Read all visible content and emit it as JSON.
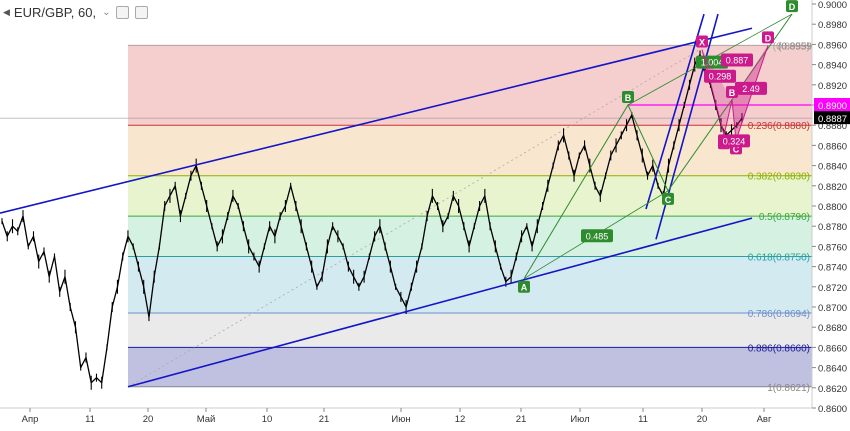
{
  "header": {
    "symbol": "EUR/GBP, 60,"
  },
  "icons": {
    "collapse": "collapse-triangle-icon",
    "dropdown": "chevron-down-icon",
    "settings": "settings-icon",
    "close": "close-icon"
  },
  "chart_data": {
    "type": "line",
    "y_axis": {
      "position": "right",
      "range": [
        0.86,
        0.9
      ],
      "ticks": [
        "0.8600",
        "0.8620",
        "0.8640",
        "0.8660",
        "0.8680",
        "0.8700",
        "0.8720",
        "0.8740",
        "0.8760",
        "0.8780",
        "0.8800",
        "0.8820",
        "0.8840",
        "0.8860",
        "0.8880",
        "0.8900",
        "0.8920",
        "0.8940",
        "0.8960",
        "0.8980",
        "0.9000"
      ],
      "price_labels": [
        {
          "value": 0.89,
          "text": "0.8900",
          "color": "#ff00ff"
        },
        {
          "value": 0.8887,
          "text": "0.8887",
          "color": "#000000"
        }
      ]
    },
    "x_axis": {
      "ticks": [
        "Апр",
        "11",
        "20",
        "Май",
        "10",
        "21",
        "Июн",
        "12",
        "21",
        "Июл",
        "11",
        "20",
        "Авг"
      ]
    },
    "price_series": [
      [
        0.8785,
        0.877,
        0.878,
        0.8775,
        0.879,
        0.876,
        0.877,
        0.8745,
        0.8755,
        0.873,
        0.875,
        0.8715,
        0.873,
        0.87,
        0.868,
        0.864,
        0.865,
        0.8625,
        0.863,
        0.8625,
        0.866,
        0.87,
        0.872,
        0.875,
        0.877,
        0.876,
        0.874,
        0.872,
        0.869,
        0.873,
        0.876,
        0.88,
        0.881,
        0.882,
        0.879,
        0.881,
        0.883,
        0.884,
        0.882,
        0.88,
        0.878,
        0.876,
        0.877,
        0.879,
        0.881,
        0.88,
        0.878,
        0.876,
        0.875,
        0.874,
        0.876,
        0.878,
        0.877,
        0.879,
        0.88,
        0.882,
        0.88,
        0.878,
        0.876,
        0.874,
        0.872,
        0.873,
        0.876,
        0.878,
        0.877,
        0.876,
        0.874,
        0.873,
        0.872,
        0.873,
        0.875,
        0.877,
        0.878,
        0.876,
        0.874,
        0.872,
        0.871,
        0.87,
        0.872,
        0.874,
        0.876,
        0.879,
        0.881,
        0.88,
        0.878,
        0.879,
        0.881,
        0.88,
        0.878,
        0.876,
        0.878,
        0.88,
        0.881,
        0.878,
        0.876,
        0.874,
        0.8725,
        0.873,
        0.875,
        0.877,
        0.878,
        0.876,
        0.878,
        0.88,
        0.882,
        0.884,
        0.886,
        0.887,
        0.885,
        0.883,
        0.885,
        0.886,
        0.884,
        0.882,
        0.881,
        0.883,
        0.885,
        0.886,
        0.887,
        0.888,
        0.889,
        0.887,
        0.885,
        0.883,
        0.884,
        0.882,
        0.881,
        0.884,
        0.886,
        0.888,
        0.89,
        0.892,
        0.894,
        0.895,
        0.893,
        0.892,
        0.89,
        0.888,
        0.887,
        0.8875,
        0.888,
        0.8887
      ]
    ],
    "fibonacci": {
      "levels": [
        {
          "label": "(0.8959)",
          "value": 0.8959,
          "fill": "#f3c6c6",
          "color": "#b0a0a0"
        },
        {
          "label": "0.236(0.8880)",
          "value": 0.888,
          "fill": "#f7e3c6",
          "color": "#cc3333"
        },
        {
          "label": "0.382(0.8830)",
          "value": 0.883,
          "fill": "#e4f2c6",
          "color": "#8ab000"
        },
        {
          "label": "0.5(0.8790)",
          "value": 0.879,
          "fill": "#cdefdc",
          "color": "#3aa83a"
        },
        {
          "label": "0.618(0.8750)",
          "value": 0.875,
          "fill": "#cde6ef",
          "color": "#2aa0a0"
        },
        {
          "label": "0.786(0.8694)",
          "value": 0.8694,
          "fill": "#e6e6e6",
          "color": "#6b8fcc"
        },
        {
          "label": "0.886(0.8660)",
          "value": 0.866,
          "fill": "#b5b5dc",
          "color": "#1c1c9c"
        },
        {
          "label": "1(0.8621)",
          "value": 0.8621,
          "fill": null,
          "color": "#888888"
        }
      ]
    },
    "channel_lines": {
      "color": "#1414c8"
    },
    "horizontal_line": {
      "value": 0.89,
      "color": "#ff00ff"
    },
    "last_price_line": {
      "value": 0.8887,
      "color": "#888888"
    },
    "green_pattern": {
      "color": "#2e8b2e",
      "points": [
        {
          "label": "A",
          "price": 0.8728
        },
        {
          "label": "B",
          "price": 0.89
        },
        {
          "label": "C",
          "price": 0.8815
        },
        {
          "label": "D",
          "price": 0.899
        }
      ],
      "ratio_labels": [
        "0.485",
        "1.004"
      ]
    },
    "pink_pattern": {
      "color": "#cc1a8c",
      "points": [
        {
          "label": "X",
          "price": 0.8955
        },
        {
          "label": "A",
          "price": 0.887
        },
        {
          "label": "B",
          "price": 0.8905
        },
        {
          "label": "C",
          "price": 0.8865
        },
        {
          "label": "D",
          "price": 0.8959
        }
      ],
      "ratio_labels": [
        "0.887",
        "0.298",
        "2.49",
        "0.324"
      ],
      "d_price_label": "(0.8959)"
    }
  }
}
